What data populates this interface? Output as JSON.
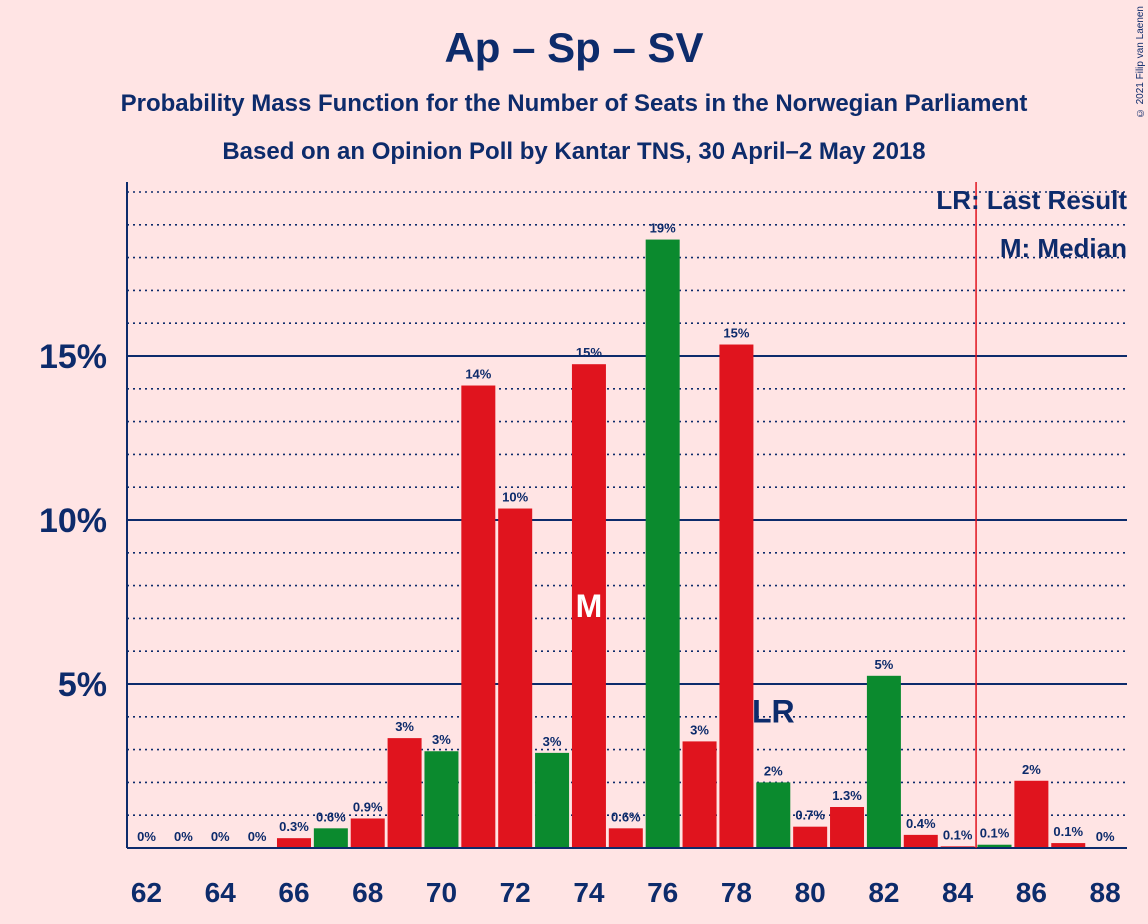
{
  "header": {
    "title": "Ap – Sp – SV",
    "subtitle_1": "Probability Mass Function for the Number of Seats in the Norwegian Parliament",
    "subtitle_2": "Based on an Opinion Poll by Kantar TNS, 30 April–2 May 2018",
    "copyright": "© 2021 Filip van Laenen"
  },
  "legend": {
    "last_result": "LR: Last Result",
    "median": "M: Median"
  },
  "markers": {
    "median_label": "M",
    "median_seat": 74,
    "last_result_label": "LR",
    "last_result_seat": 79,
    "last_result_line_x": 84.5
  },
  "colors": {
    "red": "#E0141E",
    "green": "#0B8A2E",
    "navy": "#0D2B6B",
    "lr_line": "#E0141E",
    "background": "#FFE4E4"
  },
  "chart_data": {
    "type": "bar",
    "x": [
      62,
      63,
      64,
      65,
      66,
      67,
      68,
      69,
      70,
      71,
      72,
      73,
      74,
      75,
      76,
      77,
      78,
      79,
      80,
      81,
      82,
      83,
      84,
      85,
      86,
      87,
      88
    ],
    "values": [
      0,
      0,
      0,
      0,
      0.3,
      0.6,
      0.9,
      3.35,
      2.95,
      14.1,
      10.35,
      2.9,
      14.75,
      0.6,
      18.55,
      3.25,
      15.35,
      2.0,
      0.65,
      1.25,
      5.25,
      0.4,
      0.05,
      0.1,
      2.05,
      0.15,
      0
    ],
    "labels": [
      "0%",
      "0%",
      "0%",
      "0%",
      "0.3%",
      "0.6%",
      "0.9%",
      "3%",
      "3%",
      "14%",
      "10%",
      "3%",
      "15%",
      "0.6%",
      "19%",
      "3%",
      "15%",
      "2%",
      "0.7%",
      "1.3%",
      "5%",
      "0.4%",
      "0.1%",
      "0.1%",
      "2%",
      "0.1%",
      "0%"
    ],
    "colors": [
      "red",
      "red",
      "red",
      "red",
      "red",
      "green",
      "red",
      "red",
      "green",
      "red",
      "red",
      "green",
      "red",
      "red",
      "green",
      "red",
      "red",
      "green",
      "red",
      "red",
      "green",
      "red",
      "red",
      "green",
      "red",
      "red",
      "red"
    ],
    "xticks": [
      62,
      64,
      66,
      68,
      70,
      72,
      74,
      76,
      78,
      80,
      82,
      84,
      86,
      88
    ],
    "yticks": [
      {
        "value": 5,
        "label": "5%"
      },
      {
        "value": 10,
        "label": "10%"
      },
      {
        "value": 15,
        "label": "15%"
      }
    ],
    "ylim": [
      0,
      20
    ],
    "xlabel": "",
    "ylabel": ""
  }
}
